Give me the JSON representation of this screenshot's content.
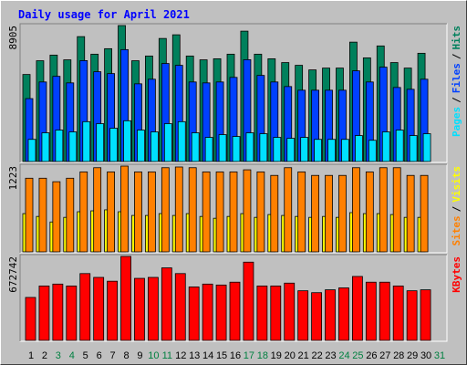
{
  "chart_data": {
    "type": "bar",
    "title": "Daily usage for April 2021",
    "separator": "/",
    "categories": [
      "1",
      "2",
      "3",
      "4",
      "5",
      "6",
      "7",
      "8",
      "9",
      "10",
      "11",
      "12",
      "13",
      "14",
      "15",
      "16",
      "17",
      "18",
      "19",
      "20",
      "21",
      "22",
      "23",
      "24",
      "25",
      "26",
      "27",
      "28",
      "29",
      "30",
      "31"
    ],
    "category_colors": [
      "#000000",
      "#000000",
      "#008040",
      "#008040",
      "#000000",
      "#000000",
      "#000000",
      "#000000",
      "#000000",
      "#008040",
      "#008040",
      "#000000",
      "#000000",
      "#000000",
      "#000000",
      "#000000",
      "#008040",
      "#008040",
      "#000000",
      "#000000",
      "#000000",
      "#000000",
      "#000000",
      "#008040",
      "#008040",
      "#000000",
      "#000000",
      "#000000",
      "#000000",
      "#000000",
      "#008040"
    ],
    "panels": [
      {
        "ylim": [
          0,
          8905
        ],
        "yticks": [
          8905
        ],
        "series": [
          {
            "name": "Pages",
            "color": "#00E0FF",
            "values": [
              1450,
              1880,
              2060,
              1940,
              2610,
              2480,
              2180,
              2670,
              2060,
              1940,
              2480,
              2610,
              1880,
              1580,
              1760,
              1640,
              1880,
              1820,
              1580,
              1520,
              1580,
              1450,
              1450,
              1450,
              1700,
              1390,
              1940,
              2060,
              1700,
              1820,
              0
            ]
          },
          {
            "name": "Files",
            "color": "#0040FF",
            "values": [
              4120,
              5210,
              5580,
              5150,
              6610,
              5880,
              5760,
              7330,
              5090,
              5390,
              6420,
              6300,
              5210,
              5150,
              5210,
              5510,
              6670,
              5640,
              5210,
              4910,
              4670,
              4670,
              4670,
              4670,
              5940,
              5210,
              6180,
              4850,
              4730,
              5390,
              0
            ]
          },
          {
            "name": "Hits",
            "color": "#00805C",
            "values": [
              5700,
              6600,
              6970,
              6660,
              8180,
              7030,
              7390,
              8905,
              6600,
              6910,
              8060,
              8300,
              6910,
              6660,
              6730,
              7030,
              8540,
              7030,
              6730,
              6480,
              6300,
              6000,
              6120,
              6120,
              7820,
              6790,
              7570,
              6480,
              6120,
              7090,
              0
            ]
          }
        ]
      },
      {
        "ylim": [
          0,
          1223
        ],
        "yticks": [
          1223
        ],
        "series": [
          {
            "name": "Sites",
            "color": "#FF8000",
            "values": [
              1050,
              1050,
              1000,
              1050,
              1140,
              1200,
              1140,
              1223,
              1140,
              1140,
              1200,
              1210,
              1200,
              1140,
              1140,
              1140,
              1170,
              1140,
              1090,
              1200,
              1140,
              1090,
              1090,
              1090,
              1200,
              1140,
              1200,
              1200,
              1090,
              1090,
              0
            ]
          },
          {
            "name": "Visits",
            "color": "#FFFF00",
            "values": [
              545,
              505,
              426,
              492,
              572,
              585,
              599,
              572,
              519,
              519,
              545,
              519,
              545,
              505,
              479,
              505,
              545,
              492,
              532,
              519,
              505,
              492,
              505,
              492,
              559,
              545,
              545,
              532,
              492,
              492,
              0
            ]
          }
        ]
      },
      {
        "ylim": [
          0,
          672742
        ],
        "yticks": [
          672742
        ],
        "series": [
          {
            "name": "KBytes",
            "color": "#FF0000",
            "values": [
              344000,
              435800,
              451000,
              435800,
              535200,
              504600,
              474000,
              672742,
              496900,
              504600,
              581000,
              535200,
              428100,
              451000,
              443400,
              466300,
              626900,
              435800,
              435800,
              458700,
              397500,
              382300,
              405200,
              420500,
              512200,
              466300,
              466300,
              435800,
              397500,
              405200,
              0
            ]
          }
        ]
      }
    ]
  }
}
